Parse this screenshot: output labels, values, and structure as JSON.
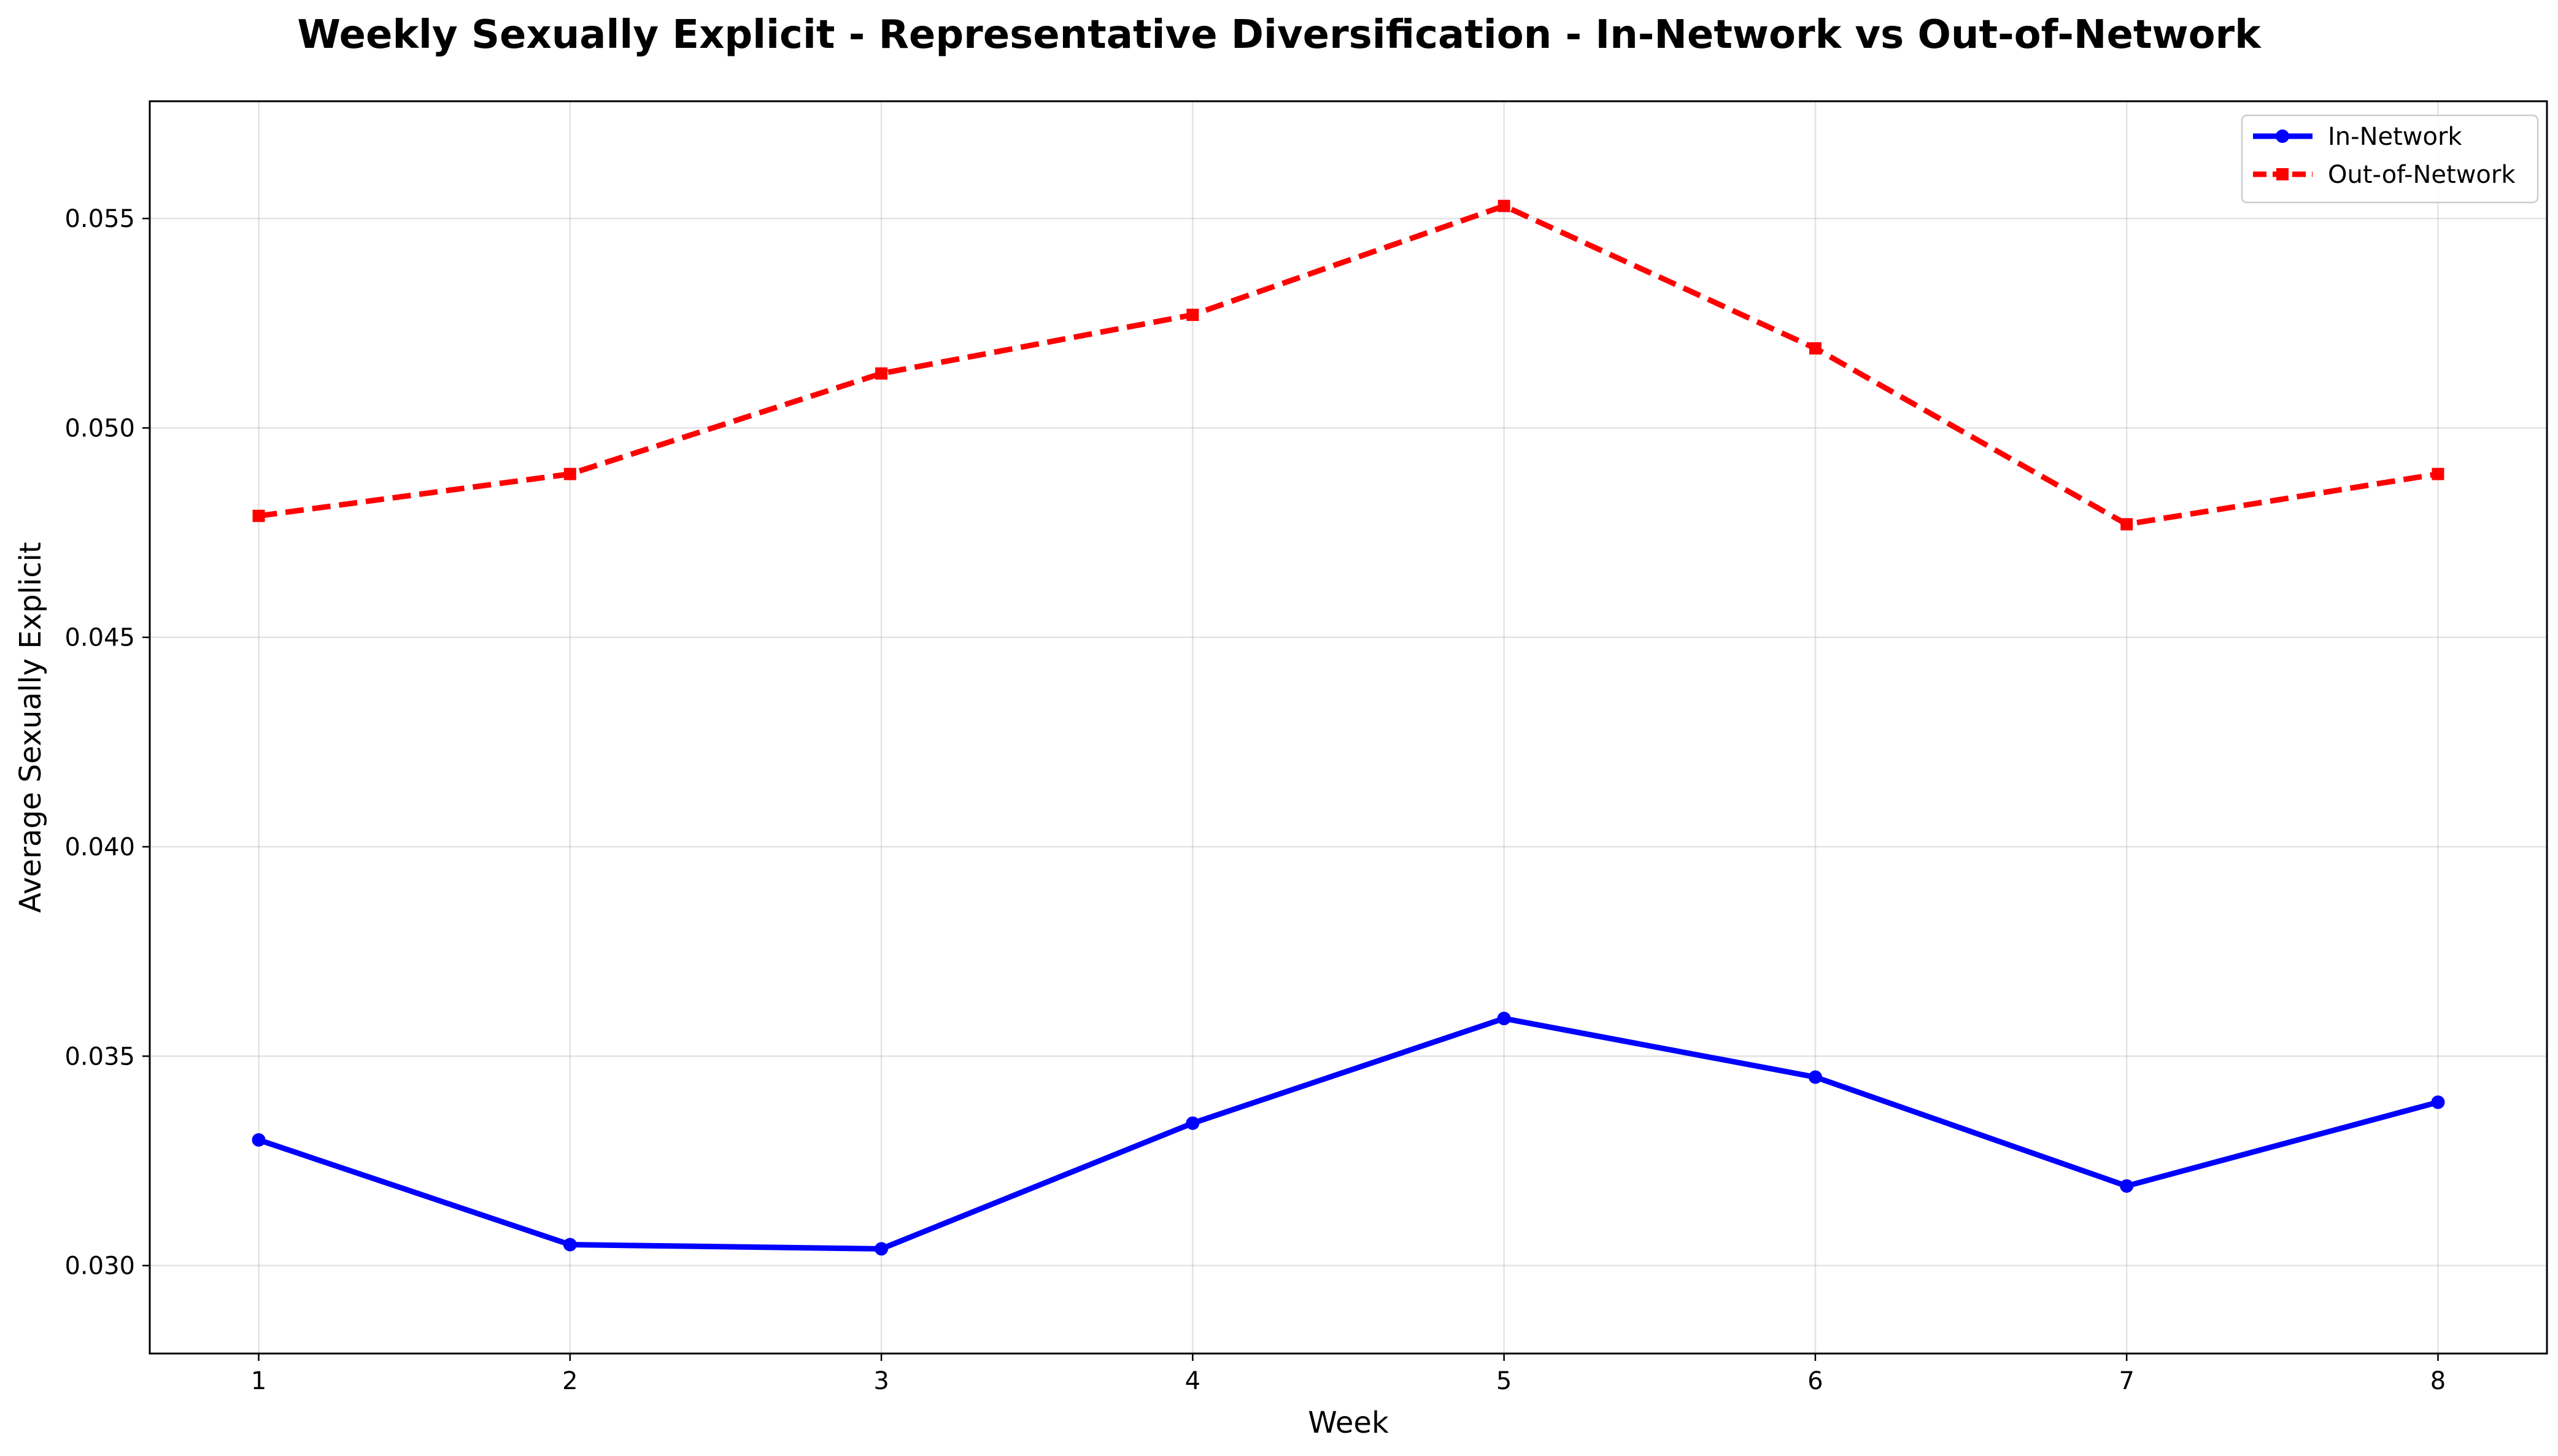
{
  "chart_data": {
    "type": "line",
    "title": "Weekly Sexually Explicit - Representative Diversification - In-Network vs Out-of-Network",
    "xlabel": "Week",
    "ylabel": "Average Sexually Explicit",
    "x": [
      1,
      2,
      3,
      4,
      5,
      6,
      7,
      8
    ],
    "x_tick_labels": [
      "1",
      "2",
      "3",
      "4",
      "5",
      "6",
      "7",
      "8"
    ],
    "y_tick_values": [
      0.03,
      0.035,
      0.04,
      0.045,
      0.05,
      0.055
    ],
    "y_tick_labels": [
      "0.030",
      "0.035",
      "0.040",
      "0.045",
      "0.050",
      "0.055"
    ],
    "xlim": [
      0.65,
      8.35
    ],
    "ylim": [
      0.0279,
      0.0578
    ],
    "grid": true,
    "legend_position": "top-right",
    "series": [
      {
        "name": "In-Network",
        "color": "#0000ff",
        "line_style": "solid",
        "marker": "circle",
        "values": [
          0.033,
          0.0305,
          0.0304,
          0.0334,
          0.0359,
          0.0345,
          0.0319,
          0.0339
        ]
      },
      {
        "name": "Out-of-Network",
        "color": "#ff0000",
        "line_style": "dashed",
        "marker": "square",
        "values": [
          0.0479,
          0.0489,
          0.0513,
          0.0527,
          0.0553,
          0.0519,
          0.0477,
          0.0489
        ]
      }
    ]
  }
}
